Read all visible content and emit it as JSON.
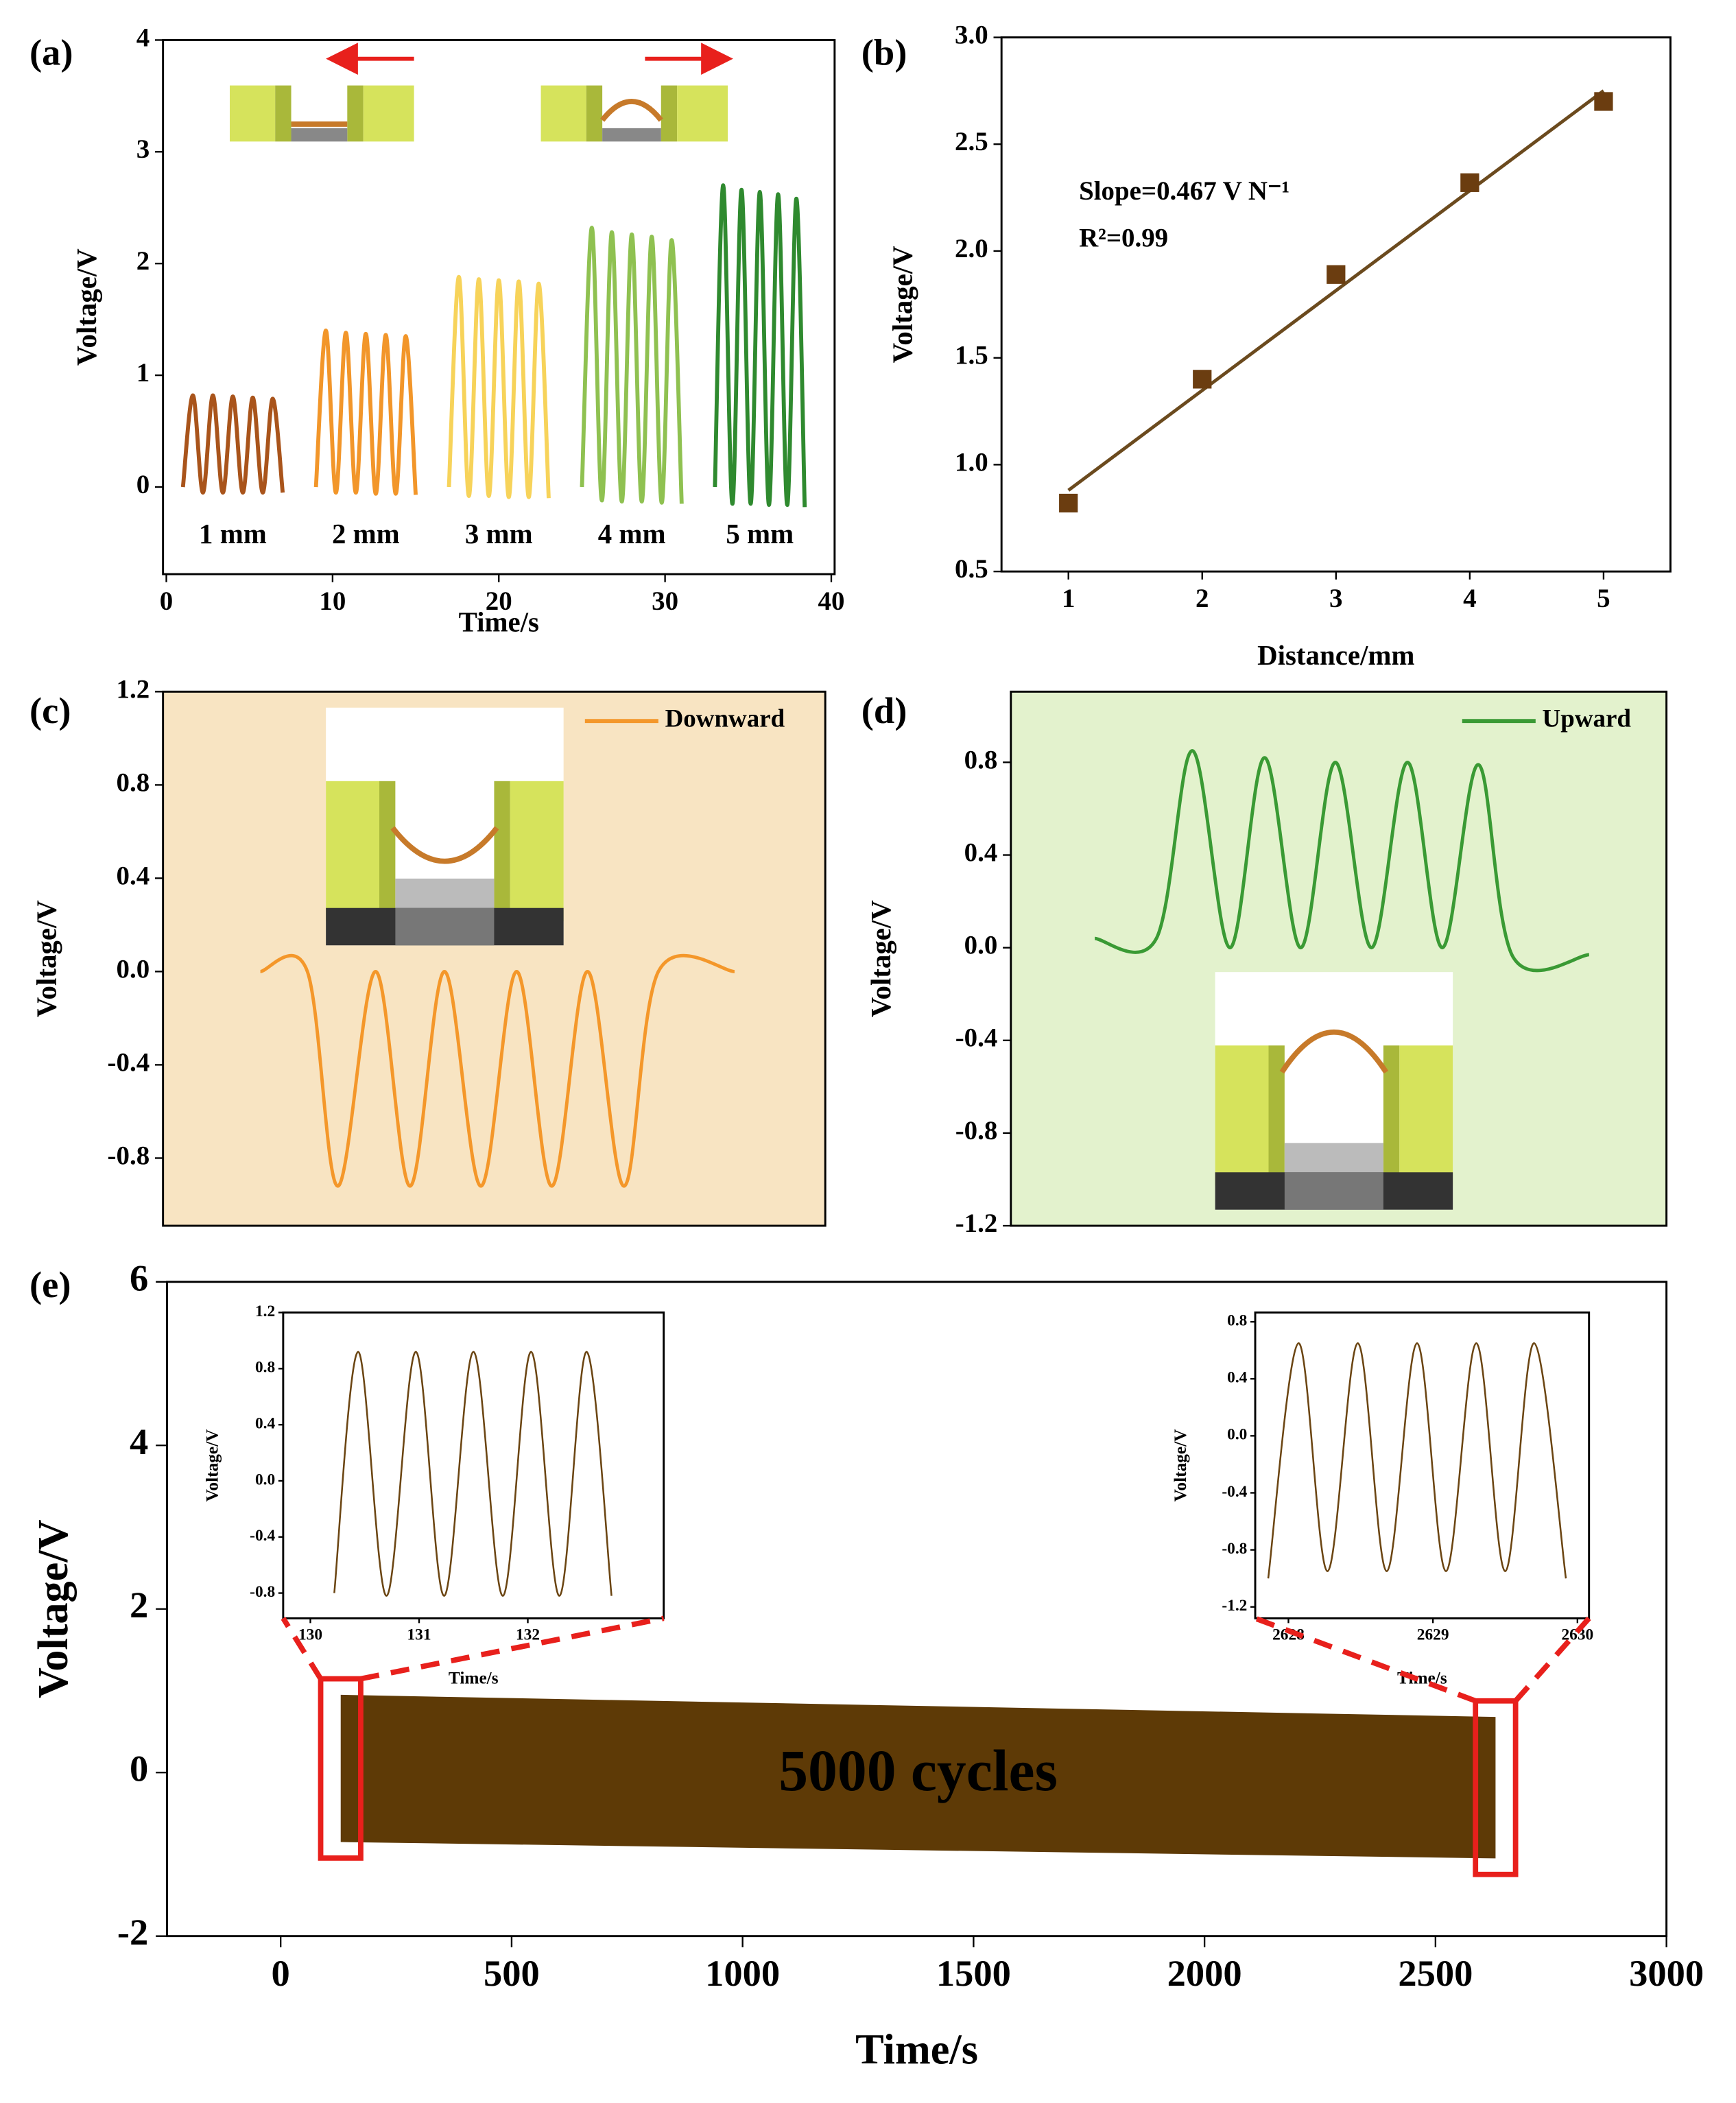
{
  "chart_data": [
    {
      "type": "line",
      "label": "(a)",
      "xlabel": "Time/s",
      "ylabel": "Voltage/V",
      "xlim": [
        -0.2,
        40.2
      ],
      "ylim": [
        -0.78,
        4.0
      ],
      "xticks": [
        0,
        10,
        20,
        30,
        40
      ],
      "yticks": [
        0,
        1,
        2,
        3,
        4
      ],
      "series": [
        {
          "name": "1 mm",
          "color": "#a9541b",
          "x": [
            1,
            1.6,
            2.2,
            2.8,
            3.4,
            4.0,
            4.6,
            5.2,
            5.8,
            6.4,
            7.0
          ],
          "values": [
            0,
            0.82,
            -0.05,
            0.82,
            -0.05,
            0.81,
            -0.05,
            0.8,
            -0.05,
            0.79,
            -0.05
          ]
        },
        {
          "name": "2 mm",
          "color": "#f2962a",
          "x": [
            9,
            9.6,
            10.2,
            10.8,
            11.4,
            12,
            12.6,
            13.2,
            13.8,
            14.4,
            15
          ],
          "values": [
            0,
            1.4,
            -0.05,
            1.38,
            -0.05,
            1.37,
            -0.06,
            1.36,
            -0.06,
            1.35,
            -0.07
          ]
        },
        {
          "name": "3 mm",
          "color": "#f7d35a",
          "x": [
            17,
            17.6,
            18.2,
            18.8,
            19.4,
            20,
            20.6,
            21.2,
            21.8,
            22.4,
            23
          ],
          "values": [
            0,
            1.88,
            -0.08,
            1.86,
            -0.08,
            1.85,
            -0.09,
            1.84,
            -0.09,
            1.82,
            -0.1
          ]
        },
        {
          "name": "4 mm",
          "color": "#8fc151",
          "x": [
            25,
            25.6,
            26.2,
            26.8,
            27.4,
            28,
            28.6,
            29.2,
            29.8,
            30.4,
            31
          ],
          "values": [
            0,
            2.32,
            -0.12,
            2.28,
            -0.13,
            2.26,
            -0.13,
            2.24,
            -0.14,
            2.21,
            -0.15
          ]
        },
        {
          "name": "5 mm",
          "color": "#2f8a2f",
          "x": [
            33,
            33.5,
            34.05,
            34.6,
            35.15,
            35.7,
            36.25,
            36.8,
            37.35,
            37.9,
            38.4
          ],
          "values": [
            0,
            2.7,
            -0.15,
            2.66,
            -0.15,
            2.64,
            -0.16,
            2.62,
            -0.16,
            2.58,
            -0.18
          ]
        }
      ]
    },
    {
      "type": "scatter",
      "label": "(b)",
      "xlabel": "Distance/mm",
      "ylabel": "Voltage/V",
      "xlim": [
        0.5,
        5.5
      ],
      "ylim": [
        0.5,
        3.0
      ],
      "xticks": [
        1,
        2,
        3,
        4,
        5
      ],
      "yticks": [
        0.5,
        {
          "value": 1,
          "label": "1.0"
        },
        1.5,
        {
          "value": 2,
          "label": "2.0"
        },
        2.5,
        {
          "value": 3,
          "label": "3.0"
        }
      ],
      "x": [
        1,
        2,
        3,
        4,
        5
      ],
      "values": [
        0.82,
        1.4,
        1.89,
        2.32,
        2.7
      ],
      "color": "#6b3d10",
      "fit": {
        "x": [
          1,
          5
        ],
        "values": [
          0.88,
          2.75
        ],
        "color": "#6b4a1e"
      },
      "annotations": [
        "Slope=0.467 V N⁻¹",
        "R²=0.99"
      ],
      "annotation_color": "#7a4a12"
    },
    {
      "type": "line",
      "label": "(c)",
      "ylabel": "Voltage/V",
      "background": "#f8e4c2",
      "legend": "upper right",
      "xlim": [
        0,
        100
      ],
      "ylim": [
        -1.09,
        1.2
      ],
      "yticks": [
        1.2,
        0.8,
        0.4,
        {
          "value": 0,
          "label": "0.0"
        },
        -0.4,
        -0.8
      ],
      "series": [
        {
          "name": "Downward",
          "color": "#f4972a",
          "x": [
            14.7,
            21.8,
            26.4,
            32.1,
            37.3,
            42.5,
            48.0,
            53.4,
            58.7,
            64.1,
            69.6,
            74.8,
            86.3
          ],
          "values": [
            0,
            0,
            -0.92,
            0,
            -0.92,
            0,
            -0.92,
            0,
            -0.92,
            0,
            -0.92,
            0,
            0
          ]
        }
      ]
    },
    {
      "type": "line",
      "label": "(d)",
      "ylabel": "Voltage/V",
      "background": "#e3f2cd",
      "legend": "upper right",
      "xlim": [
        0,
        100
      ],
      "ylim": [
        -1.2,
        1.105
      ],
      "yticks": [
        0.8,
        0.4,
        {
          "value": 0,
          "label": "0.0"
        },
        -0.4,
        -0.8,
        -1.2
      ],
      "series": [
        {
          "name": "Upward",
          "color": "#3a9a34",
          "x": [
            12.8,
            22.2,
            27.7,
            33.4,
            38.7,
            44.2,
            49.5,
            55.0,
            60.5,
            65.8,
            71.3,
            76.6,
            88.2
          ],
          "values": [
            0.04,
            0.04,
            0.85,
            0,
            0.82,
            0,
            0.8,
            0,
            0.8,
            0,
            0.79,
            -0.04,
            -0.03
          ]
        }
      ]
    },
    {
      "type": "band",
      "label": "(e)",
      "xlabel": "Time/s",
      "ylabel": "Voltage/V",
      "xlim": [
        -246,
        3000
      ],
      "ylim": [
        -2,
        6
      ],
      "xticks": [
        0,
        500,
        1000,
        1500,
        2000,
        2500,
        3000
      ],
      "yticks": [
        -2,
        0,
        2,
        4,
        6
      ],
      "envelope": {
        "x": [
          130,
          2630
        ],
        "upper": [
          0.95,
          0.68
        ],
        "lower": [
          -0.85,
          -1.05
        ]
      },
      "color": "#5e3a06",
      "annotations": [
        "5000 cycles"
      ],
      "highlight_color": "#e8201c"
    },
    {
      "type": "line",
      "xlabel": "Time/s",
      "ylabel": "Voltage/V",
      "xlim": [
        129.75,
        133.25
      ],
      "ylim": [
        -0.98,
        1.2
      ],
      "xticks": [
        130,
        131,
        132
      ],
      "yticks": [
        1.2,
        0.8,
        0.4,
        {
          "value": 0,
          "label": "0.0"
        },
        -0.4,
        -0.8
      ],
      "series": [
        {
          "color": "#6b4512",
          "x": [
            130.22,
            130.44,
            130.7,
            130.97,
            131.23,
            131.5,
            131.77,
            132.03,
            132.29,
            132.54,
            132.77
          ],
          "values": [
            -0.8,
            0.92,
            -0.82,
            0.92,
            -0.82,
            0.92,
            -0.82,
            0.92,
            -0.82,
            0.92,
            -0.82
          ]
        }
      ]
    },
    {
      "type": "line",
      "xlabel": "Time/s",
      "ylabel": "Voltage/V",
      "xlim": [
        2627.77,
        2630.08
      ],
      "ylim": [
        -1.28,
        0.865
      ],
      "xticks": [
        2628,
        2629,
        2630
      ],
      "yticks": [
        0.8,
        0.4,
        {
          "value": 0,
          "label": "0.0"
        },
        -0.4,
        -0.8,
        -1.2
      ],
      "series": [
        {
          "color": "#6b4512",
          "x": [
            2627.86,
            2628.07,
            2628.27,
            2628.48,
            2628.68,
            2628.89,
            2629.09,
            2629.3,
            2629.5,
            2629.7,
            2629.92
          ],
          "values": [
            -1.0,
            0.65,
            -0.95,
            0.65,
            -0.95,
            0.65,
            -0.95,
            0.65,
            -0.95,
            0.65,
            -1.0
          ]
        }
      ]
    }
  ]
}
